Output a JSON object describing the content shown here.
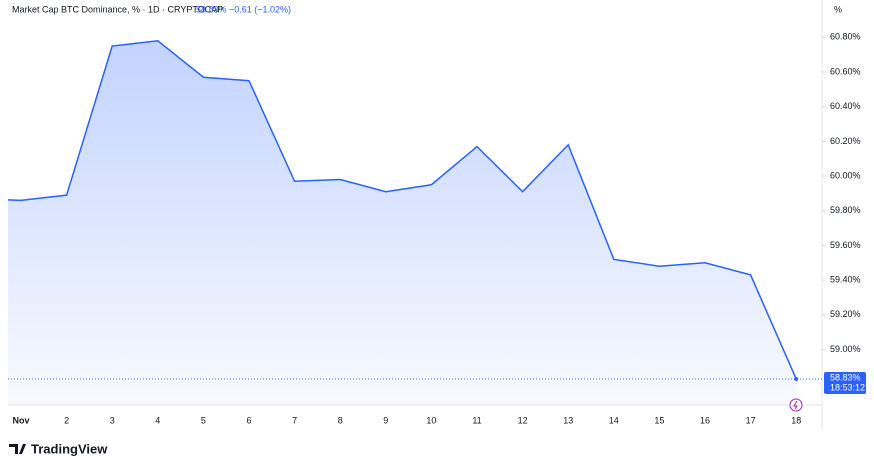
{
  "chart_data": {
    "type": "area",
    "title": "Market Cap BTC Dominance, % · 1D · CRYPTOCAP",
    "price": "58.83%",
    "change": "−0.61 (−1.02%)",
    "axis_unit": "%",
    "last_price_label": "58.83%",
    "countdown": "18:53:12",
    "brand": "TradingView",
    "color": "#2962ff",
    "categories": [
      null,
      "Nov",
      "2",
      "3",
      "4",
      "5",
      "6",
      "7",
      "8",
      "9",
      "10",
      "11",
      "12",
      "13",
      "14",
      "15",
      "16",
      "17",
      "18"
    ],
    "values": [
      59.87,
      59.86,
      59.89,
      60.75,
      60.78,
      60.57,
      60.55,
      59.97,
      59.98,
      59.91,
      59.95,
      60.17,
      59.91,
      60.18,
      59.52,
      59.48,
      59.5,
      59.43,
      58.83
    ],
    "ylim": [
      58.68,
      60.9
    ],
    "yticks": [
      {
        "value": 59.0,
        "label": "59.00%"
      },
      {
        "value": 59.2,
        "label": "59.20%"
      },
      {
        "value": 59.4,
        "label": "59.40%"
      },
      {
        "value": 59.6,
        "label": "59.60%"
      },
      {
        "value": 59.8,
        "label": "59.80%"
      },
      {
        "value": 60.0,
        "label": "60.00%"
      },
      {
        "value": 60.2,
        "label": "60.20%"
      },
      {
        "value": 60.4,
        "label": "60.40%"
      },
      {
        "value": 60.6,
        "label": "60.60%"
      },
      {
        "value": 60.8,
        "label": "60.80%"
      }
    ],
    "grid": false
  }
}
